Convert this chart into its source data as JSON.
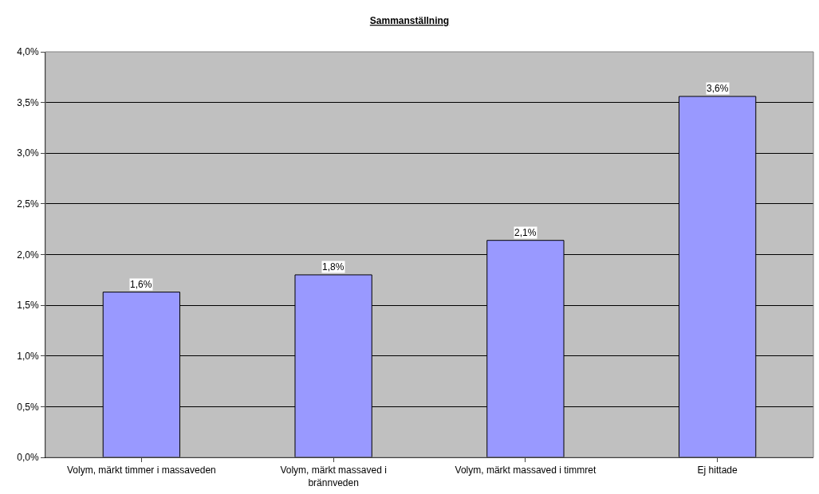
{
  "chart_data": {
    "type": "bar",
    "title": "Sammanställning",
    "categories": [
      "Volym, märkt timmer i massaveden",
      "Volym, märkt massaved i brännveden",
      "Volym, märkt massaved i timmret",
      "Ej hittade"
    ],
    "values": [
      1.63,
      1.8,
      2.14,
      3.56
    ],
    "value_labels": [
      "1,6%",
      "1,8%",
      "2,1%",
      "3,6%"
    ],
    "color": "#9999ff",
    "ylim": [
      0,
      4
    ],
    "yticks": [
      {
        "value": 0,
        "label": "0,0%"
      },
      {
        "value": 0.5,
        "label": "0,5%"
      },
      {
        "value": 1,
        "label": "1,0%"
      },
      {
        "value": 1.5,
        "label": "1,5%"
      },
      {
        "value": 2,
        "label": "2,0%"
      },
      {
        "value": 2.5,
        "label": "2,5%"
      },
      {
        "value": 3,
        "label": "3,0%"
      },
      {
        "value": 3.5,
        "label": "3,5%"
      },
      {
        "value": 4,
        "label": "4,0%"
      }
    ],
    "grid": "y"
  }
}
